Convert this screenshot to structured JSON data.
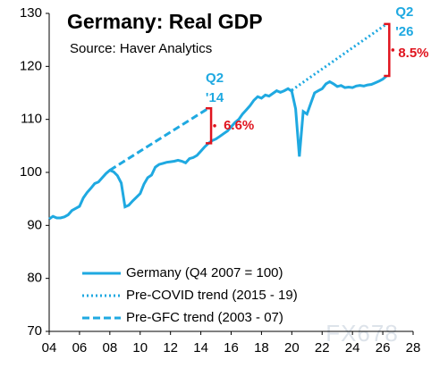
{
  "chart_data": {
    "type": "line",
    "title": "Germany: Real GDP",
    "subtitle": "Source: Haver Analytics",
    "watermark": "FX678",
    "xlim": [
      2004,
      2028
    ],
    "xticks": [
      {
        "value": 2004,
        "label": "04"
      },
      {
        "value": 2006,
        "label": "06"
      },
      {
        "value": 2008,
        "label": "08"
      },
      {
        "value": 2010,
        "label": "10"
      },
      {
        "value": 2012,
        "label": "12"
      },
      {
        "value": 2014,
        "label": "14"
      },
      {
        "value": 2016,
        "label": "16"
      },
      {
        "value": 2018,
        "label": "18"
      },
      {
        "value": 2020,
        "label": "20"
      },
      {
        "value": 2022,
        "label": "22"
      },
      {
        "value": 2024,
        "label": "24"
      },
      {
        "value": 2026,
        "label": "26"
      },
      {
        "value": 2028,
        "label": "28"
      }
    ],
    "ylim": [
      70,
      130
    ],
    "yticks": [
      70,
      80,
      90,
      100,
      110,
      120,
      130
    ],
    "legend": "lower left",
    "series": [
      {
        "name": "Germany (Q4 2007 = 100)",
        "color": "#1fa9e1",
        "style": "solid",
        "x": [
          2004,
          2004.25,
          2004.5,
          2004.75,
          2005,
          2005.25,
          2005.5,
          2005.75,
          2006,
          2006.25,
          2006.5,
          2006.75,
          2007,
          2007.25,
          2007.5,
          2007.75,
          2008,
          2008.25,
          2008.5,
          2008.75,
          2009,
          2009.25,
          2009.5,
          2009.75,
          2010,
          2010.25,
          2010.5,
          2010.75,
          2011,
          2011.25,
          2011.5,
          2011.75,
          2012,
          2012.25,
          2012.5,
          2012.75,
          2013,
          2013.25,
          2013.5,
          2013.75,
          2014,
          2014.25,
          2014.5,
          2014.75,
          2015,
          2015.25,
          2015.5,
          2015.75,
          2016,
          2016.25,
          2016.5,
          2016.75,
          2017,
          2017.25,
          2017.5,
          2017.75,
          2018,
          2018.25,
          2018.5,
          2018.75,
          2019,
          2019.25,
          2019.5,
          2019.75,
          2020,
          2020.25,
          2020.5,
          2020.75,
          2021,
          2021.25,
          2021.5,
          2021.75,
          2022,
          2022.25,
          2022.5,
          2022.75,
          2023,
          2023.25,
          2023.5,
          2023.75,
          2024,
          2024.25,
          2024.5,
          2024.75,
          2025,
          2025.25,
          2025.5,
          2025.75,
          2026,
          2026.25
        ],
        "values": [
          91.2,
          91.7,
          91.4,
          91.4,
          91.6,
          92.0,
          92.8,
          93.2,
          93.6,
          95.2,
          96.2,
          97.0,
          97.9,
          98.2,
          99.0,
          99.8,
          100.4,
          100.1,
          99.4,
          98.0,
          93.5,
          93.8,
          94.6,
          95.3,
          96.0,
          97.8,
          99.0,
          99.5,
          101.0,
          101.5,
          101.7,
          101.9,
          102.0,
          102.1,
          102.3,
          102.1,
          101.8,
          102.6,
          102.8,
          103.2,
          104.0,
          104.8,
          105.5,
          106.0,
          106.3,
          106.8,
          107.3,
          107.8,
          108.6,
          109.4,
          110.0,
          111.0,
          111.8,
          112.6,
          113.6,
          114.3,
          114.0,
          114.6,
          114.4,
          114.9,
          115.4,
          115.1,
          115.4,
          115.8,
          115.3,
          112.0,
          103.0,
          111.5,
          111.0,
          113.0,
          115.0,
          115.4,
          115.8,
          116.7,
          117.1,
          116.7,
          116.2,
          116.4,
          116.0,
          116.1,
          116.0,
          116.3,
          116.4,
          116.3,
          116.5,
          116.6,
          116.9,
          117.2,
          117.6,
          118.2
        ]
      },
      {
        "name": "Pre-COVID trend (2015 - 19)",
        "color": "#1fa9e1",
        "style": "dotted",
        "x": [
          2020,
          2026.25
        ],
        "values": [
          115.5,
          128.0
        ]
      },
      {
        "name": "Pre-GFC trend (2003 - 07)",
        "color": "#1fa9e1",
        "style": "dashed",
        "x": [
          2008,
          2014.5
        ],
        "values": [
          100.4,
          112.1
        ]
      }
    ],
    "annotations": [
      "Q2",
      "'14",
      "6.6%",
      "Q2",
      "'26",
      "8.5%"
    ],
    "annotation_colors": [
      "#1fa9e1",
      "#e0141e"
    ]
  }
}
